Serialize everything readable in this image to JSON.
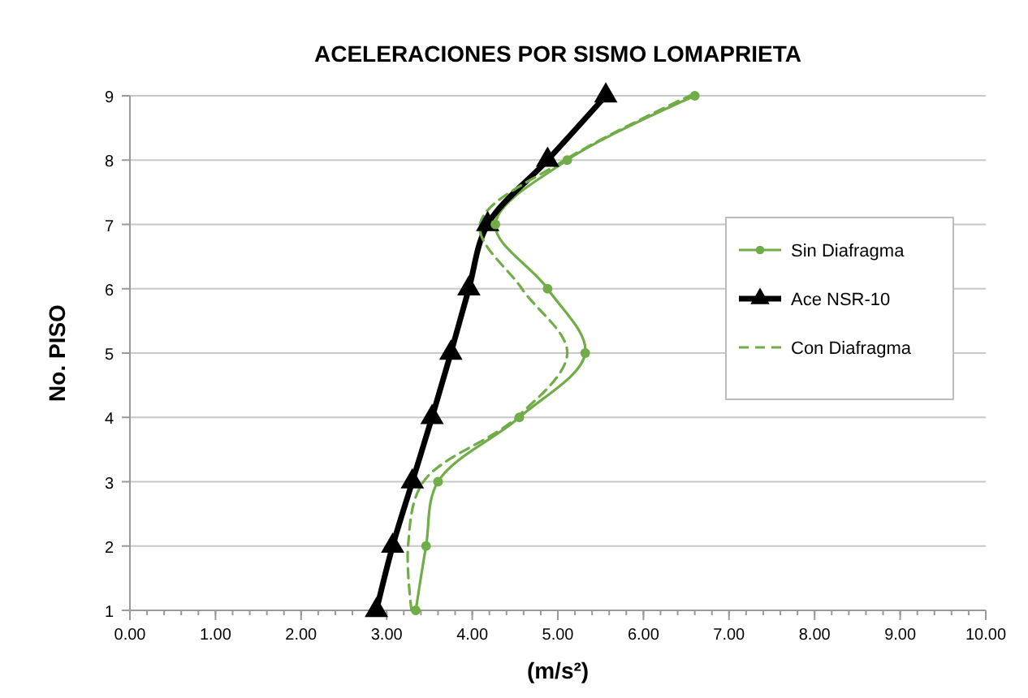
{
  "chart_data": {
    "type": "line",
    "title": "ACELERACIONES POR SISMO LOMAPRIETA",
    "xlabel": "(m/s²)",
    "ylabel": "No. PISO",
    "xlim": [
      0,
      10
    ],
    "xticks": [
      {
        "value": 0,
        "label": "0.00"
      },
      {
        "value": 1,
        "label": "1.00"
      },
      {
        "value": 2,
        "label": "2.00"
      },
      {
        "value": 3,
        "label": "3.00"
      },
      {
        "value": 4,
        "label": "4.00"
      },
      {
        "value": 5,
        "label": "5.00"
      },
      {
        "value": 6,
        "label": "6.00"
      },
      {
        "value": 7,
        "label": "7.00"
      },
      {
        "value": 8,
        "label": "8.00"
      },
      {
        "value": 9,
        "label": "9.00"
      },
      {
        "value": 10,
        "label": "10.00"
      }
    ],
    "ylim": [
      1,
      9
    ],
    "yticks": [
      1,
      2,
      3,
      4,
      5,
      6,
      7,
      8,
      9
    ],
    "grid": "y",
    "legend": "right",
    "series": [
      {
        "name": "Sin Diafragma",
        "color": "#70ad47",
        "marker": "circle",
        "line_style": "solid",
        "x": [
          3.34,
          3.46,
          3.6,
          4.55,
          5.32,
          4.88,
          4.27,
          5.11,
          6.6
        ],
        "values": [
          1,
          2,
          3,
          4,
          5,
          6,
          7,
          8,
          9
        ]
      },
      {
        "name": "Ace NSR-10",
        "color": "#000000",
        "marker": "triangle",
        "line_style": "solid",
        "x": [
          2.88,
          3.07,
          3.3,
          3.53,
          3.75,
          3.96,
          4.18,
          4.88,
          5.56
        ],
        "values": [
          1,
          2,
          3,
          4,
          5,
          6,
          7,
          8,
          9
        ]
      },
      {
        "name": "Con Diafragma",
        "color": "#70ad47",
        "marker": "none",
        "line_style": "dashed",
        "x": [
          3.29,
          3.25,
          3.43,
          4.52,
          5.11,
          4.58,
          4.09,
          5.08,
          6.54
        ],
        "values": [
          1,
          2,
          3,
          4,
          5,
          6,
          7,
          8,
          9
        ]
      }
    ]
  }
}
